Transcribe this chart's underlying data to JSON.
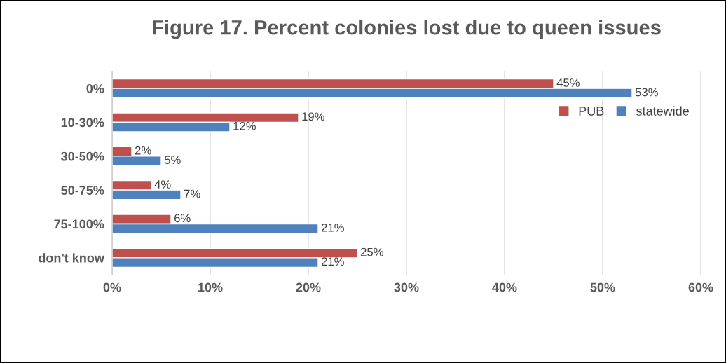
{
  "chart_data": {
    "type": "bar",
    "orientation": "horizontal",
    "title": "Figure 17. Percent colonies lost due to queen issues",
    "categories": [
      "0%",
      "10-30%",
      "30-50%",
      "50-75%",
      "75-100%",
      "don't know"
    ],
    "series": [
      {
        "name": "PUB",
        "color": "#c0504d",
        "values": [
          45,
          19,
          2,
          4,
          6,
          25
        ],
        "value_labels": [
          "45%",
          "19%",
          "2%",
          "4%",
          "6%",
          "25%"
        ]
      },
      {
        "name": "statewide",
        "color": "#4f81bd",
        "values": [
          53,
          12,
          5,
          7,
          21,
          21
        ],
        "value_labels": [
          "53%",
          "12%",
          "5%",
          "7%",
          "21%",
          "21%"
        ]
      }
    ],
    "xlim": [
      0,
      60
    ],
    "xticks": [
      {
        "value": 0,
        "label": "0%"
      },
      {
        "value": 10,
        "label": "10%"
      },
      {
        "value": 20,
        "label": "20%"
      },
      {
        "value": 30,
        "label": "30%"
      },
      {
        "value": 40,
        "label": "40%"
      },
      {
        "value": 50,
        "label": "50%"
      },
      {
        "value": 60,
        "label": "60%"
      }
    ],
    "grid": "x",
    "legend": "right"
  }
}
